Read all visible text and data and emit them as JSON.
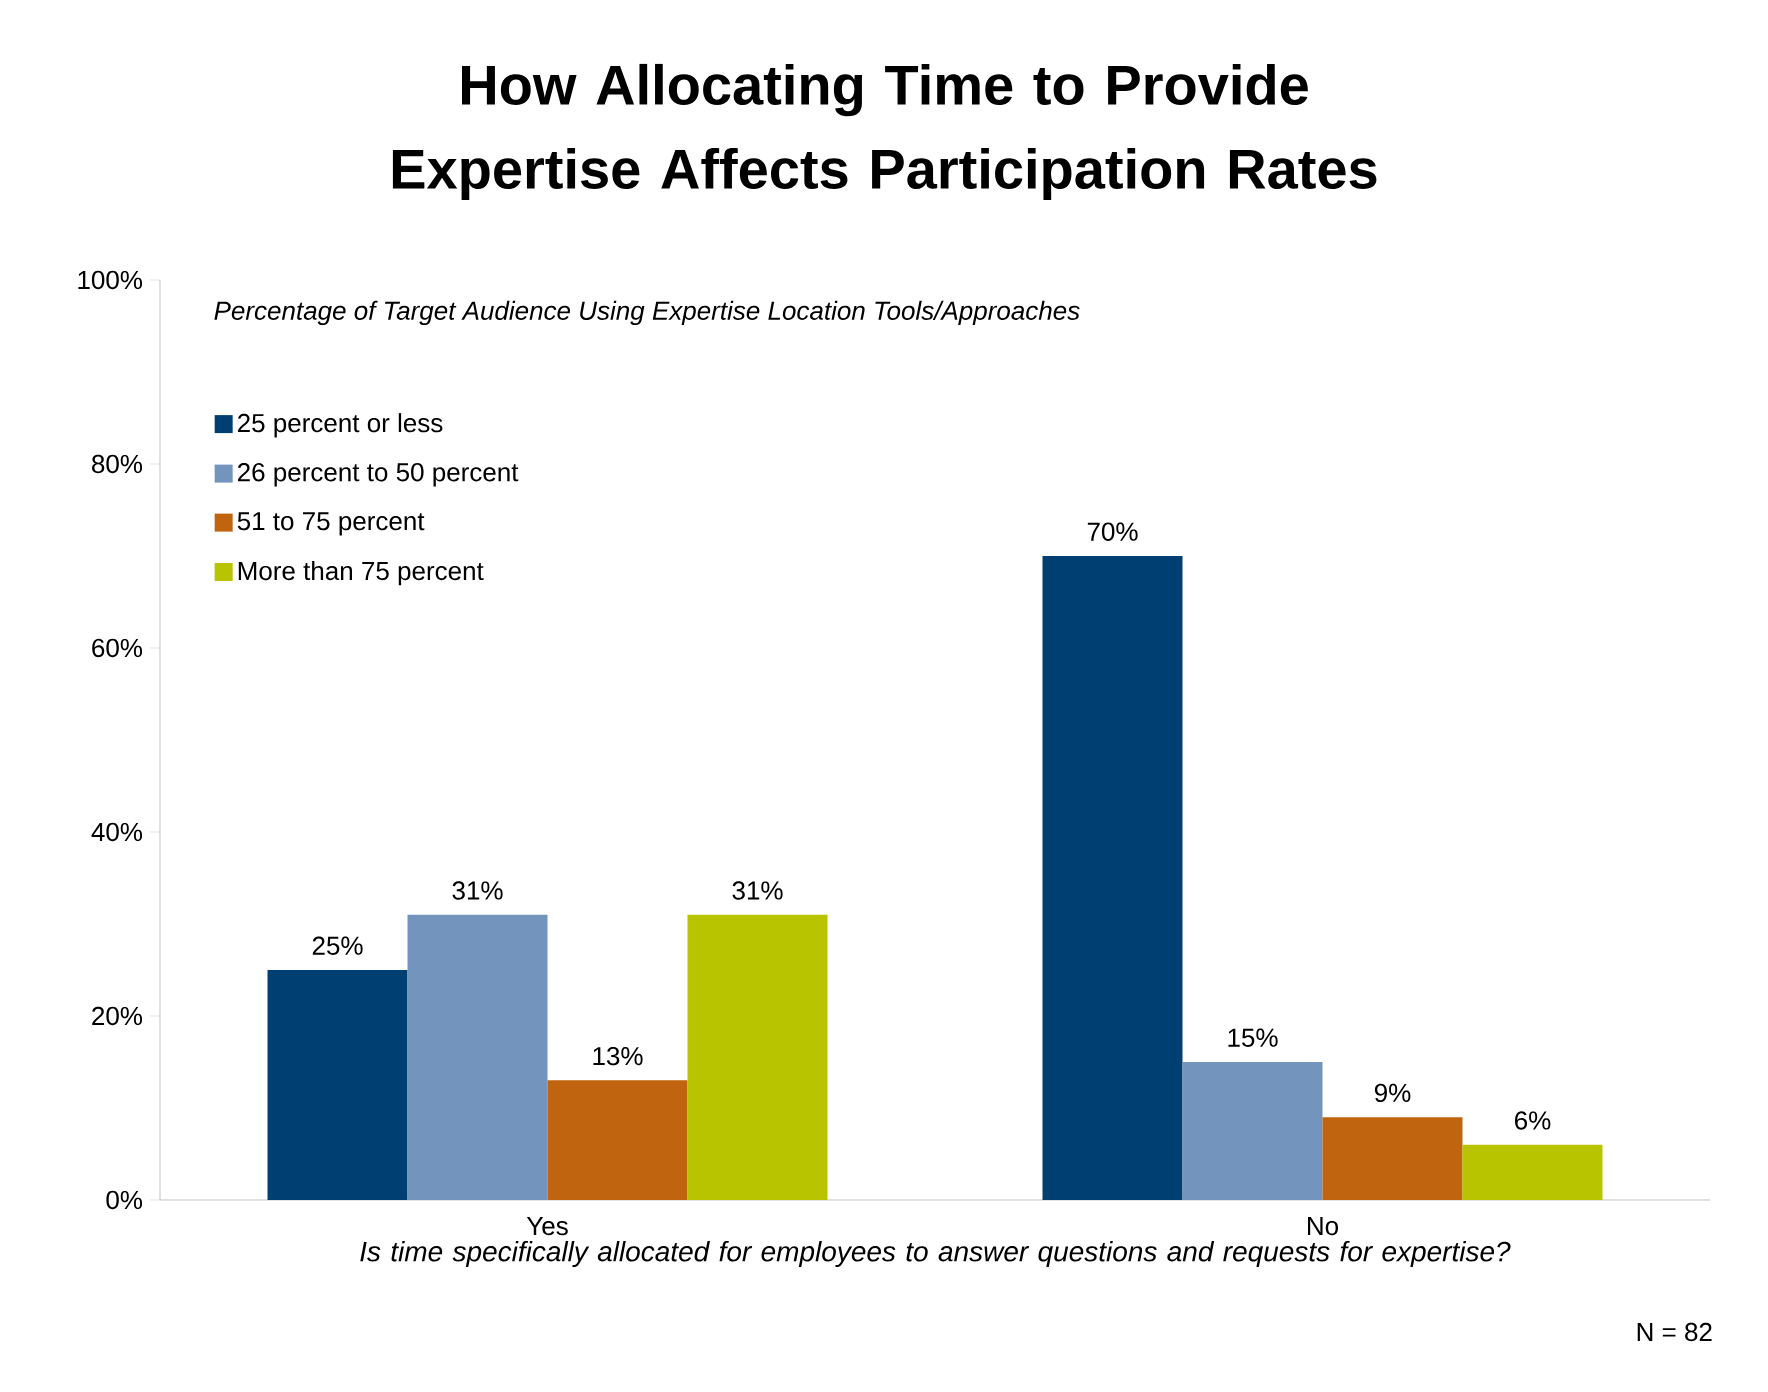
{
  "chart_data": {
    "type": "bar",
    "title": "How Allocating Time to Provide Expertise Affects Participation Rates",
    "xlabel": "Is time specifically allocated for employees to answer questions and requests for expertise?",
    "legend_title": "Percentage of Target Audience Using Expertise Location Tools/Approaches",
    "categories": [
      "Yes",
      "No"
    ],
    "series": [
      {
        "name": "25 percent or less",
        "color": "#003f72",
        "values": [
          25,
          70
        ],
        "value_labels": [
          "25%",
          "70%"
        ]
      },
      {
        "name": "26 percent to 50 percent",
        "color": "#7394bd",
        "values": [
          31,
          15
        ],
        "value_labels": [
          "31%",
          "15%"
        ]
      },
      {
        "name": "51 to 75 percent",
        "color": "#c0640f",
        "values": [
          13,
          9
        ],
        "value_labels": [
          "13%",
          "9%"
        ]
      },
      {
        "name": "More than 75 percent",
        "color": "#b8c400",
        "values": [
          31,
          6
        ],
        "value_labels": [
          "31%",
          "6%"
        ]
      }
    ],
    "ylim": [
      0,
      100
    ],
    "yticks": [
      {
        "value": 0,
        "label": "0%"
      },
      {
        "value": 20,
        "label": "20%"
      },
      {
        "value": 40,
        "label": "40%"
      },
      {
        "value": 60,
        "label": "60%"
      },
      {
        "value": 80,
        "label": "80%"
      },
      {
        "value": 100,
        "label": "100%"
      }
    ],
    "legend": "top left",
    "annotations": [
      "N = 82"
    ]
  }
}
